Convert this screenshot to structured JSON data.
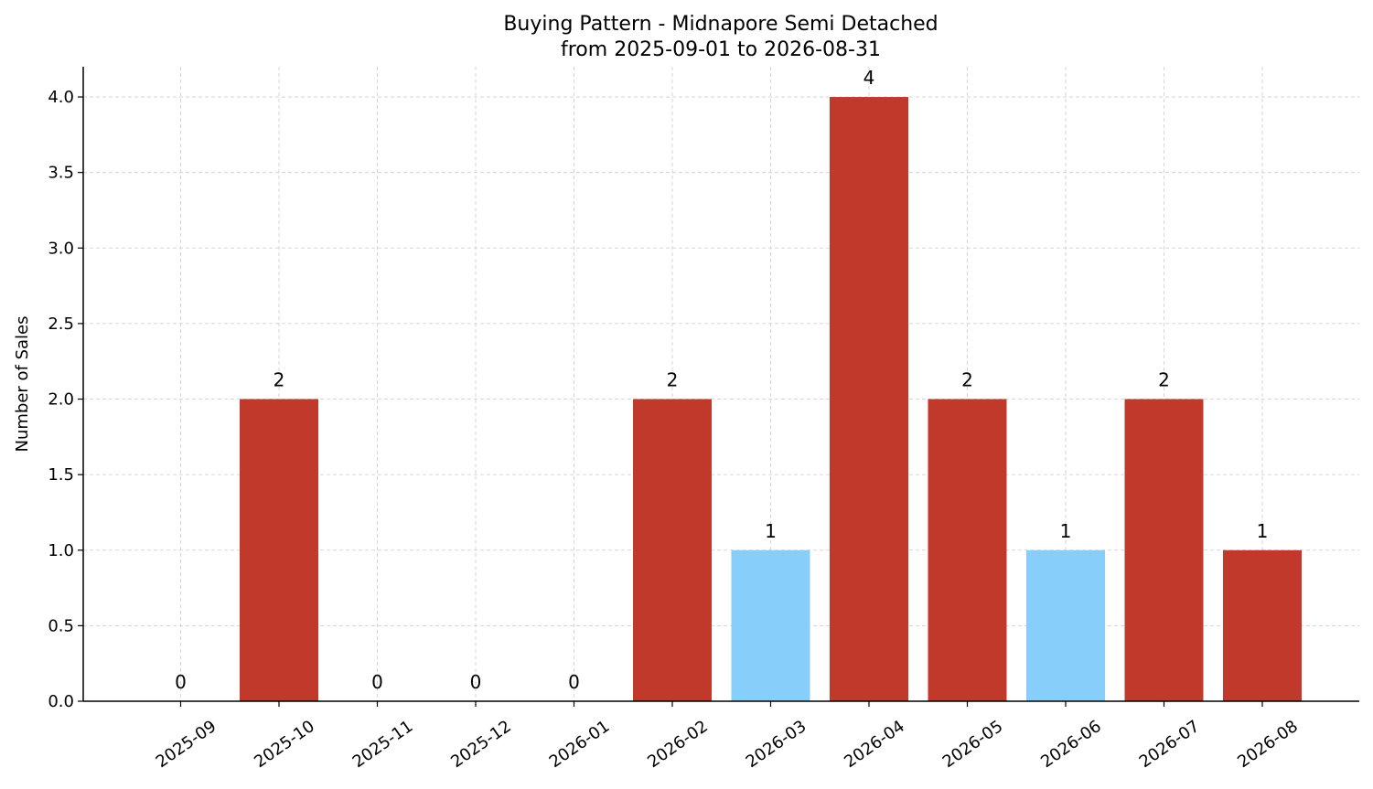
{
  "chart_data": {
    "type": "bar",
    "title": "Buying Pattern - Midnapore Semi Detached",
    "subtitle": "from 2025-09-01 to 2026-08-31",
    "xlabel": "",
    "ylabel": "Number of Sales",
    "categories": [
      "2025-09",
      "2025-10",
      "2025-11",
      "2025-12",
      "2026-01",
      "2026-02",
      "2026-03",
      "2026-04",
      "2026-05",
      "2026-06",
      "2026-07",
      "2026-08"
    ],
    "values": [
      0,
      2,
      0,
      0,
      0,
      2,
      1,
      4,
      2,
      1,
      2,
      1
    ],
    "bar_colors": [
      "#c0392b",
      "#c0392b",
      "#c0392b",
      "#c0392b",
      "#c0392b",
      "#c0392b",
      "#87cefa",
      "#c0392b",
      "#c0392b",
      "#87cefa",
      "#c0392b",
      "#c0392b"
    ],
    "data_labels": [
      "0",
      "2",
      "0",
      "0",
      "0",
      "2",
      "1",
      "4",
      "2",
      "1",
      "2",
      "1"
    ],
    "ylim": [
      0,
      4.2
    ],
    "yticks": [
      0.0,
      0.5,
      1.0,
      1.5,
      2.0,
      2.5,
      3.0,
      3.5,
      4.0
    ],
    "ytick_labels": [
      "0.0",
      "0.5",
      "1.0",
      "1.5",
      "2.0",
      "2.5",
      "3.0",
      "3.5",
      "4.0"
    ],
    "grid": true,
    "legend": "none"
  }
}
